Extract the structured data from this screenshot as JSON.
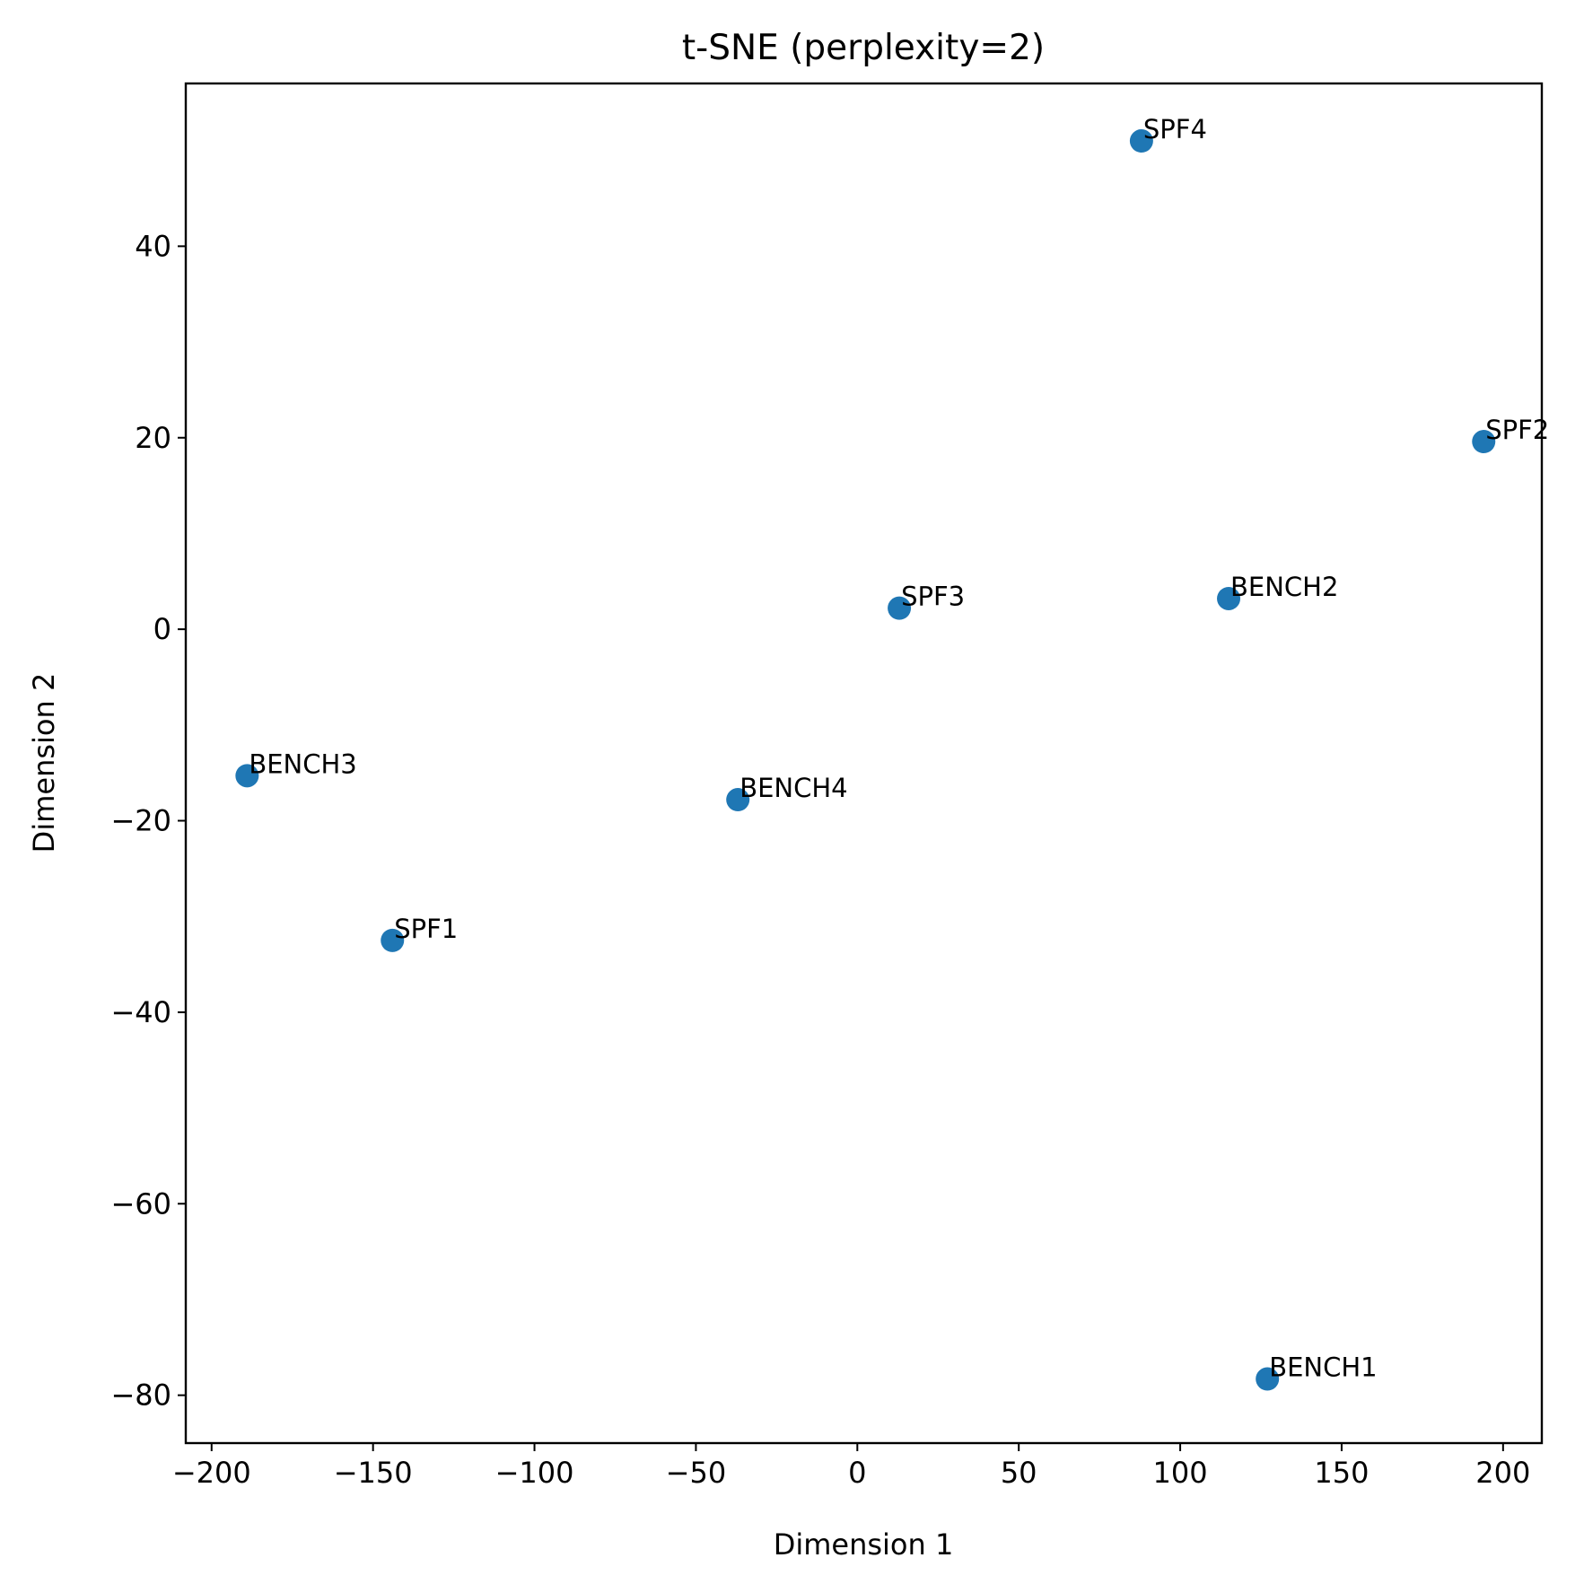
{
  "chart_data": {
    "type": "scatter",
    "title": "t-SNE (perplexity=2)",
    "xlabel": "Dimension 1",
    "ylabel": "Dimension 2",
    "xlim": [
      -208,
      212
    ],
    "ylim": [
      -85,
      57
    ],
    "xticks": [
      -200,
      -150,
      -100,
      -50,
      0,
      50,
      100,
      150,
      200
    ],
    "xtick_labels": [
      "−200",
      "−150",
      "−100",
      "−50",
      "0",
      "50",
      "100",
      "150",
      "200"
    ],
    "yticks": [
      -80,
      -60,
      -40,
      -20,
      0,
      20,
      40
    ],
    "ytick_labels": [
      "−80",
      "−60",
      "−40",
      "−20",
      "0",
      "20",
      "40"
    ],
    "grid": false,
    "color": "#1f77b4",
    "points": [
      {
        "label": "SPF4",
        "x": 88,
        "y": 51
      },
      {
        "label": "SPF2",
        "x": 194,
        "y": 19.6
      },
      {
        "label": "SPF3",
        "x": 13,
        "y": 2.2
      },
      {
        "label": "BENCH2",
        "x": 115,
        "y": 3.2
      },
      {
        "label": "BENCH3",
        "x": -189,
        "y": -15.3
      },
      {
        "label": "BENCH4",
        "x": -37,
        "y": -17.8
      },
      {
        "label": "SPF1",
        "x": -144,
        "y": -32.5
      },
      {
        "label": "BENCH1",
        "x": 127,
        "y": -78.3
      }
    ]
  }
}
